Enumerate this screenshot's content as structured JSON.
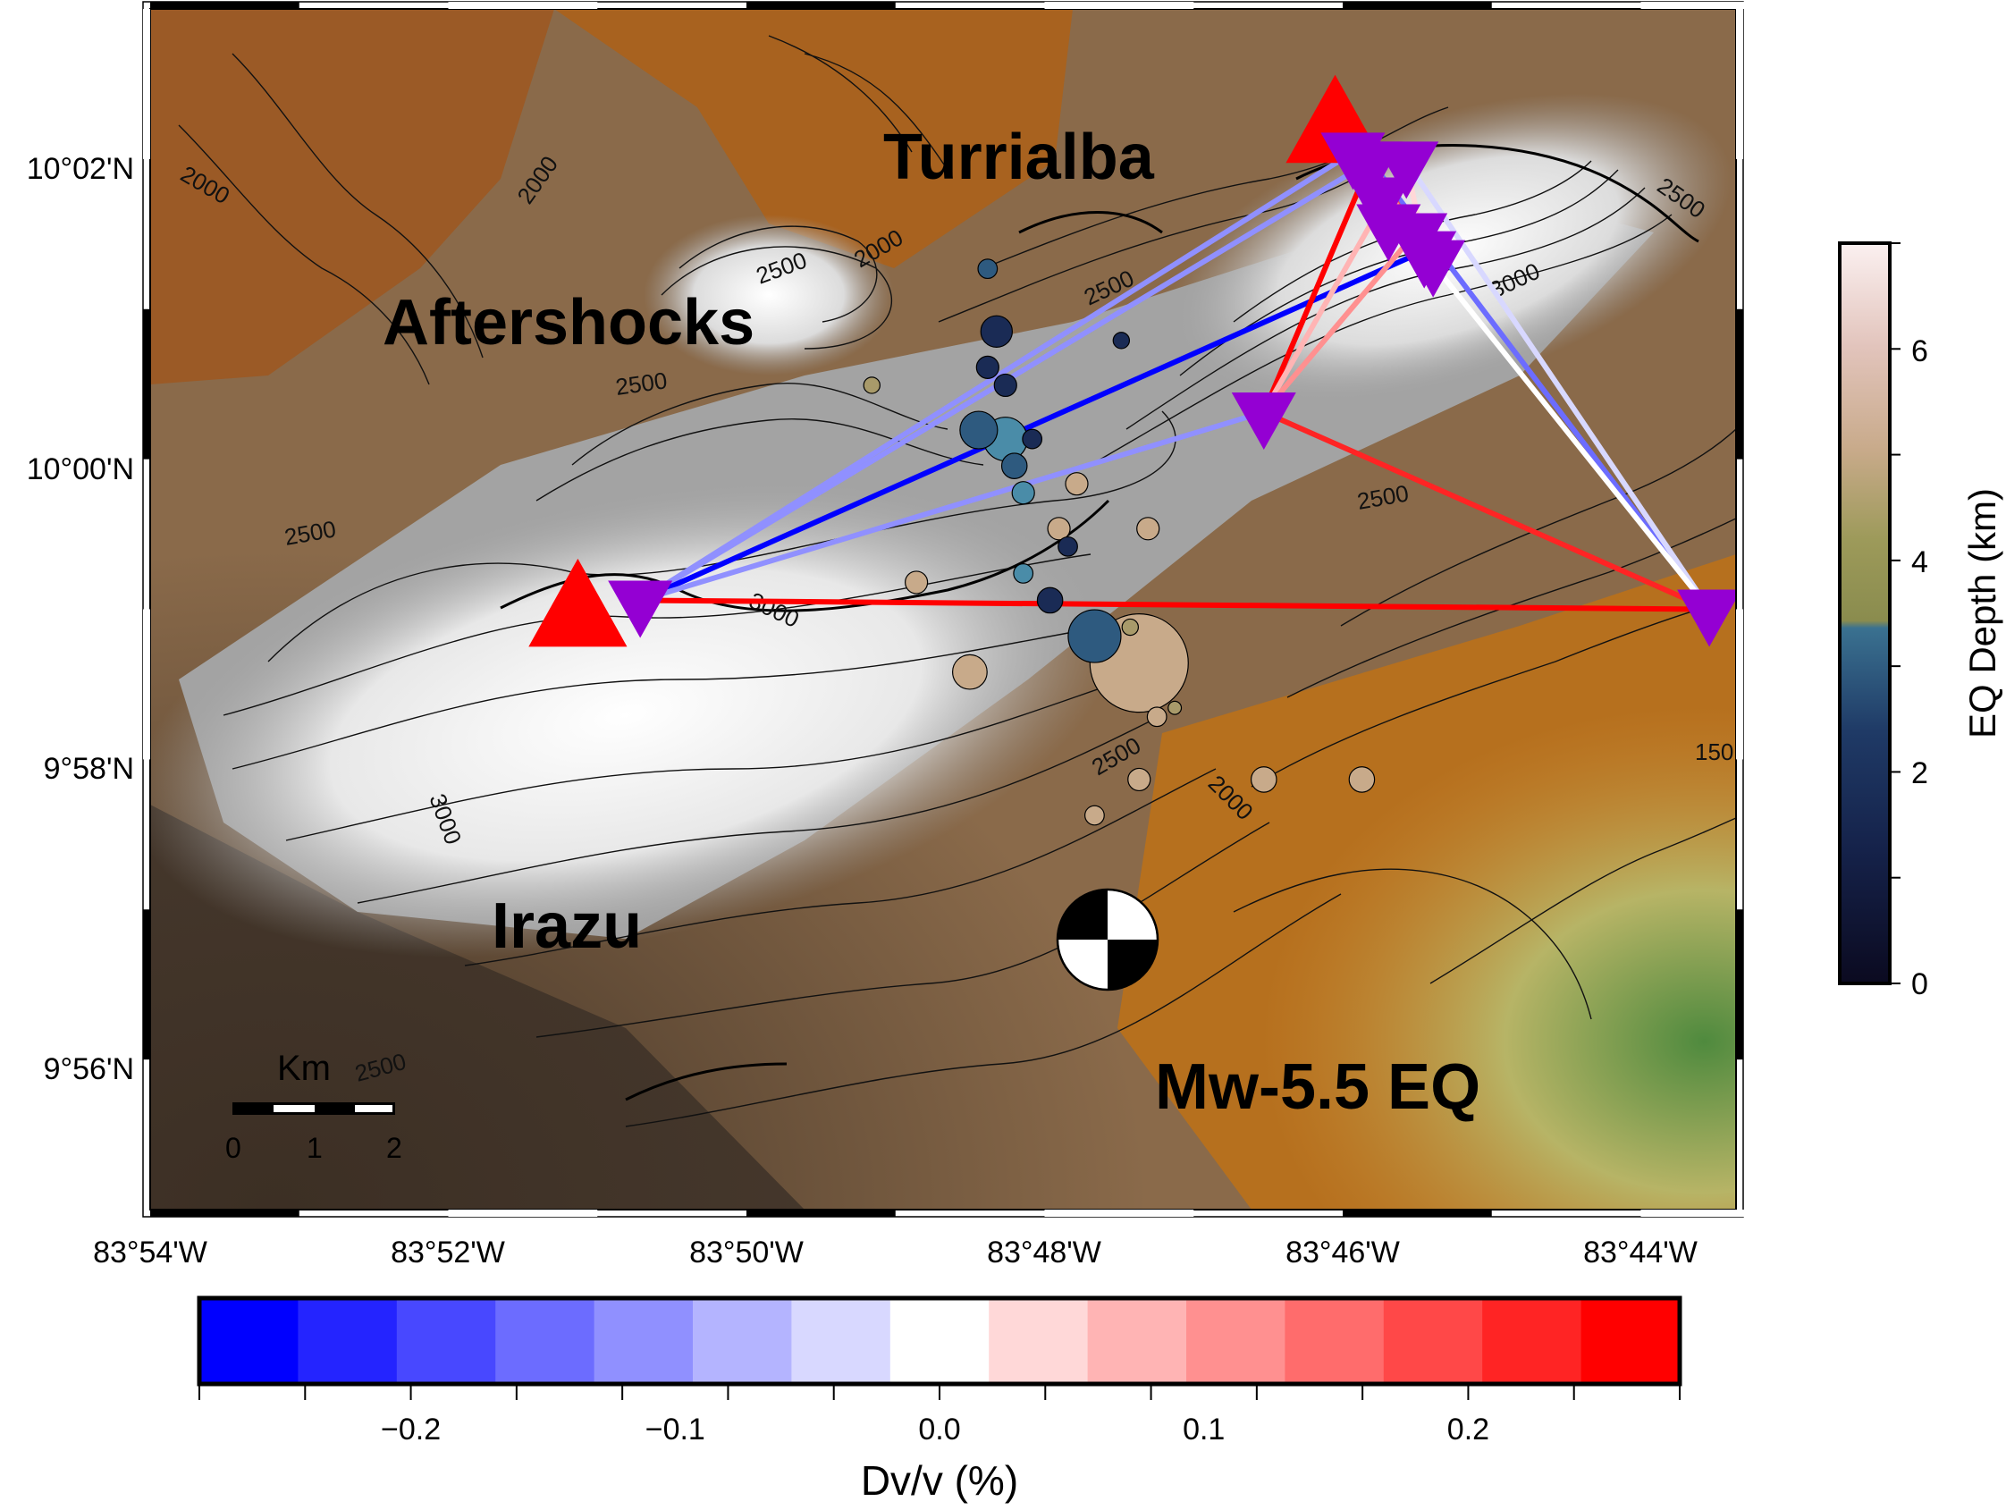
{
  "map": {
    "lat_ticks": [
      "10°02'N",
      "10°00'N",
      "9°58'N",
      "9°56'N"
    ],
    "lon_ticks": [
      "83°54'W",
      "83°52'W",
      "83°50'W",
      "83°48'W",
      "83°46'W",
      "83°44'W"
    ],
    "extent": {
      "lon_west": -83.9,
      "lon_east": -83.722,
      "lat_south": 9.913,
      "lat_north": 10.047
    },
    "labels": {
      "turrialba": "Turrialba",
      "aftershocks": "Aftershocks",
      "irazu": "Irazu",
      "mw_eq": "Mw-5.5 EQ"
    },
    "contour_labels": [
      "2000",
      "2000",
      "2000",
      "2000",
      "2500",
      "2500",
      "2500",
      "2500",
      "2500",
      "2500",
      "2500",
      "2500",
      "3000",
      "3000",
      "3000",
      "150"
    ],
    "scale_bar": {
      "unit": "Km",
      "ticks": [
        "0",
        "1",
        "2"
      ]
    }
  },
  "volcanoes": [
    {
      "name": "Irazu",
      "lon": -83.852,
      "lat": 9.979,
      "color": "#ff0000"
    },
    {
      "name": "Turrialba",
      "lon": -83.767,
      "lat": 10.033,
      "color": "#ff0000"
    }
  ],
  "stations": [
    {
      "lon": -83.845,
      "lat": 9.981
    },
    {
      "lon": -83.765,
      "lat": 10.031
    },
    {
      "lon": -83.763,
      "lat": 10.03
    },
    {
      "lon": -83.762,
      "lat": 10.026
    },
    {
      "lon": -83.761,
      "lat": 10.023
    },
    {
      "lon": -83.759,
      "lat": 10.03
    },
    {
      "lon": -83.758,
      "lat": 10.022
    },
    {
      "lon": -83.757,
      "lat": 10.02
    },
    {
      "lon": -83.756,
      "lat": 10.019
    },
    {
      "lon": -83.775,
      "lat": 10.002
    },
    {
      "lon": -83.725,
      "lat": 9.98
    }
  ],
  "station_color": "#9400d3",
  "earthquakes": [
    {
      "lon": -83.806,
      "lat": 10.007,
      "depth_km": 1.0,
      "mag": 0.5
    },
    {
      "lon": -83.804,
      "lat": 9.999,
      "depth_km": 2.5,
      "mag": 1.2
    },
    {
      "lon": -83.807,
      "lat": 10.0,
      "depth_km": 1.8,
      "mag": 1.0
    },
    {
      "lon": -83.805,
      "lat": 10.011,
      "depth_km": 1.2,
      "mag": 0.8
    },
    {
      "lon": -83.806,
      "lat": 10.018,
      "depth_km": 1.5,
      "mag": 0.4
    },
    {
      "lon": -83.804,
      "lat": 10.005,
      "depth_km": 0.8,
      "mag": 0.5
    },
    {
      "lon": -83.803,
      "lat": 9.996,
      "depth_km": 1.5,
      "mag": 0.6
    },
    {
      "lon": -83.802,
      "lat": 9.993,
      "depth_km": 2.8,
      "mag": 0.5
    },
    {
      "lon": -83.801,
      "lat": 9.999,
      "depth_km": 1.0,
      "mag": 0.4
    },
    {
      "lon": -83.802,
      "lat": 9.984,
      "depth_km": 3.0,
      "mag": 0.4
    },
    {
      "lon": -83.797,
      "lat": 9.987,
      "depth_km": 0.8,
      "mag": 0.4
    },
    {
      "lon": -83.799,
      "lat": 9.981,
      "depth_km": 0.5,
      "mag": 0.6
    },
    {
      "lon": -83.798,
      "lat": 9.989,
      "depth_km": 5.0,
      "mag": 0.5
    },
    {
      "lon": -83.791,
      "lat": 10.01,
      "depth_km": 1.2,
      "mag": 0.3
    },
    {
      "lon": -83.808,
      "lat": 9.973,
      "depth_km": 5.0,
      "mag": 0.9
    },
    {
      "lon": -83.794,
      "lat": 9.977,
      "depth_km": 1.5,
      "mag": 1.5
    },
    {
      "lon": -83.789,
      "lat": 9.974,
      "depth_km": 5.0,
      "mag": 3.0
    },
    {
      "lon": -83.788,
      "lat": 9.989,
      "depth_km": 5.0,
      "mag": 0.5
    },
    {
      "lon": -83.796,
      "lat": 9.994,
      "depth_km": 5.0,
      "mag": 0.5
    },
    {
      "lon": -83.79,
      "lat": 9.978,
      "depth_km": 4.5,
      "mag": 0.3
    },
    {
      "lon": -83.789,
      "lat": 9.961,
      "depth_km": 5.0,
      "mag": 0.5
    },
    {
      "lon": -83.787,
      "lat": 9.968,
      "depth_km": 5.0,
      "mag": 0.4
    },
    {
      "lon": -83.794,
      "lat": 9.957,
      "depth_km": 5.5,
      "mag": 0.4
    },
    {
      "lon": -83.819,
      "lat": 10.005,
      "depth_km": 4.2,
      "mag": 0.3
    },
    {
      "lon": -83.814,
      "lat": 9.983,
      "depth_km": 5.0,
      "mag": 0.5
    },
    {
      "lon": -83.775,
      "lat": 9.961,
      "depth_km": 5.0,
      "mag": 0.6
    },
    {
      "lon": -83.764,
      "lat": 9.961,
      "depth_km": 5.0,
      "mag": 0.6
    },
    {
      "lon": -83.785,
      "lat": 9.969,
      "depth_km": 4.5,
      "mag": 0.2
    }
  ],
  "mainshock": {
    "lon": -83.794,
    "lat": 9.951,
    "label": "Mw-5.5 EQ"
  },
  "dvv_links": [
    {
      "from": 0,
      "to": 10,
      "dvv": 0.25
    },
    {
      "from": 0,
      "to": 2,
      "dvv": -0.12
    },
    {
      "from": 0,
      "to": 1,
      "dvv": -0.1
    },
    {
      "from": 0,
      "to": 7,
      "dvv": -0.25
    },
    {
      "from": 0,
      "to": 9,
      "dvv": -0.1
    },
    {
      "from": 9,
      "to": 10,
      "dvv": 0.22
    },
    {
      "from": 9,
      "to": 2,
      "dvv": 0.25
    },
    {
      "from": 9,
      "to": 5,
      "dvv": 0.08
    },
    {
      "from": 9,
      "to": 6,
      "dvv": 0.12
    },
    {
      "from": 10,
      "to": 2,
      "dvv": -0.15
    },
    {
      "from": 10,
      "to": 5,
      "dvv": -0.03
    },
    {
      "from": 10,
      "to": 3,
      "dvv": -0.01
    },
    {
      "from": 2,
      "to": 6,
      "dvv": 0.2
    },
    {
      "from": 5,
      "to": 7,
      "dvv": 0.05
    },
    {
      "from": 2,
      "to": 7,
      "dvv": 0.1
    }
  ],
  "depth_colorbar": {
    "label": "EQ Depth (km)",
    "ticks": [
      "0",
      "2",
      "4",
      "6"
    ],
    "min": 0,
    "max": 7,
    "stops": [
      "#0b0a20",
      "#1a2b55",
      "#2e5a7f",
      "#4a8ca8",
      "#888c52",
      "#a89a6a",
      "#c8aa8a",
      "#e3c7c0",
      "#fbeeee"
    ]
  },
  "dvv_colorbar": {
    "label": "Dv/v (%)",
    "ticks": [
      "−0.2",
      "−0.1",
      "0.0",
      "0.1",
      "0.2"
    ],
    "min": -0.28,
    "max": 0.28,
    "bins": [
      "#0000ff",
      "#2424ff",
      "#4848ff",
      "#6c6cff",
      "#9090ff",
      "#b4b4ff",
      "#d8d8ff",
      "#ffffff",
      "#ffd8d8",
      "#ffb4b4",
      "#ff9090",
      "#ff6c6c",
      "#ff4848",
      "#ff2424",
      "#ff0000"
    ]
  }
}
